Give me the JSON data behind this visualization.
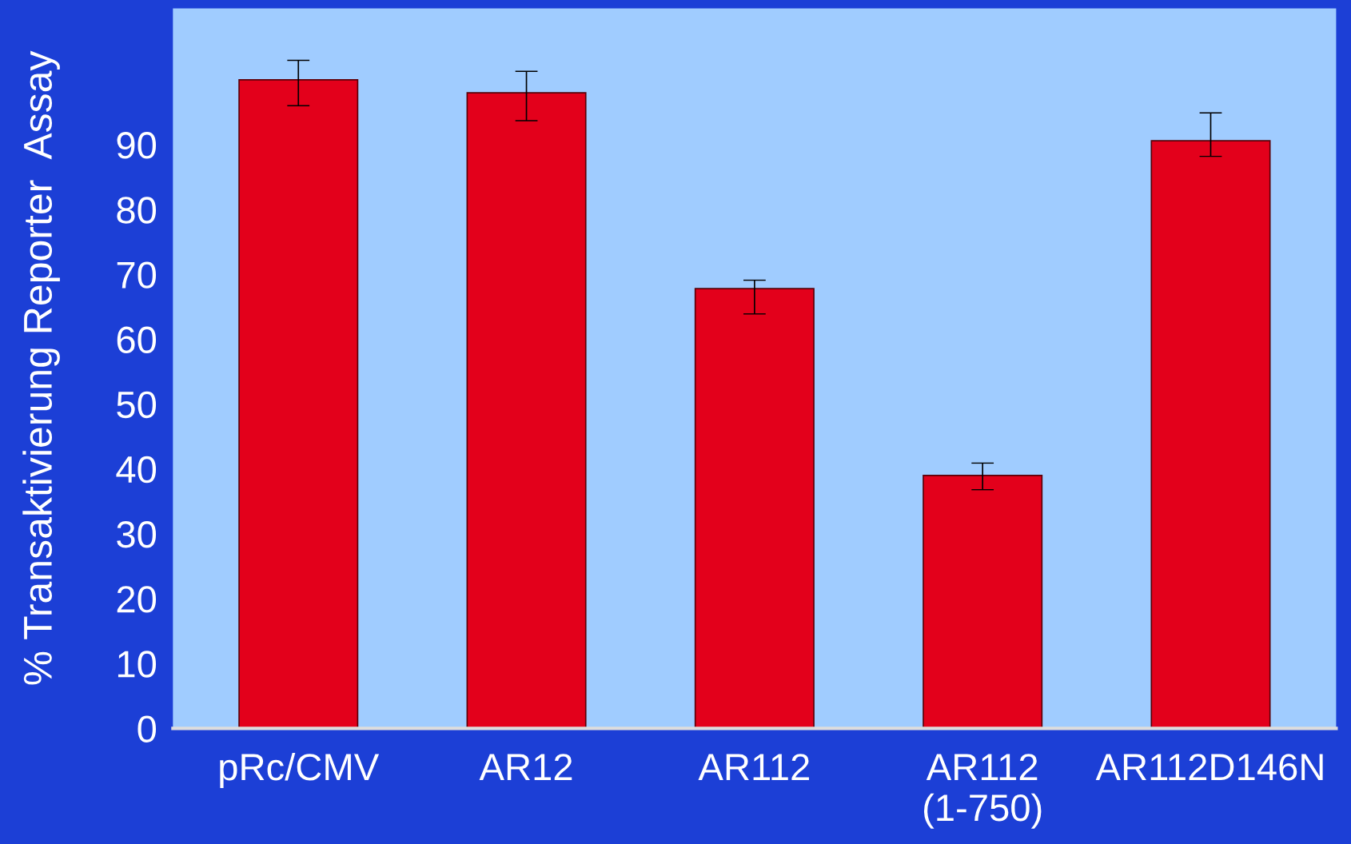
{
  "chart_data": {
    "type": "bar",
    "ylabel": "% Transaktivierung Reporter  Assay",
    "categories": [
      "pRc/CMV",
      "AR12",
      "AR112",
      "AR112\n(1-750)",
      "AR112D146N"
    ],
    "values": [
      100,
      98,
      67.8,
      39,
      90.6
    ],
    "errors": [
      [
        96,
        103
      ],
      [
        93.7,
        101.3
      ],
      [
        63.9,
        69.1
      ],
      [
        36.8,
        40.9
      ],
      [
        88.2,
        94.9
      ]
    ],
    "color": "#e3001b",
    "ylim": [
      0,
      111
    ],
    "yticks": [
      0,
      10,
      20,
      30,
      40,
      50,
      60,
      70,
      80,
      90
    ],
    "grid": false
  }
}
